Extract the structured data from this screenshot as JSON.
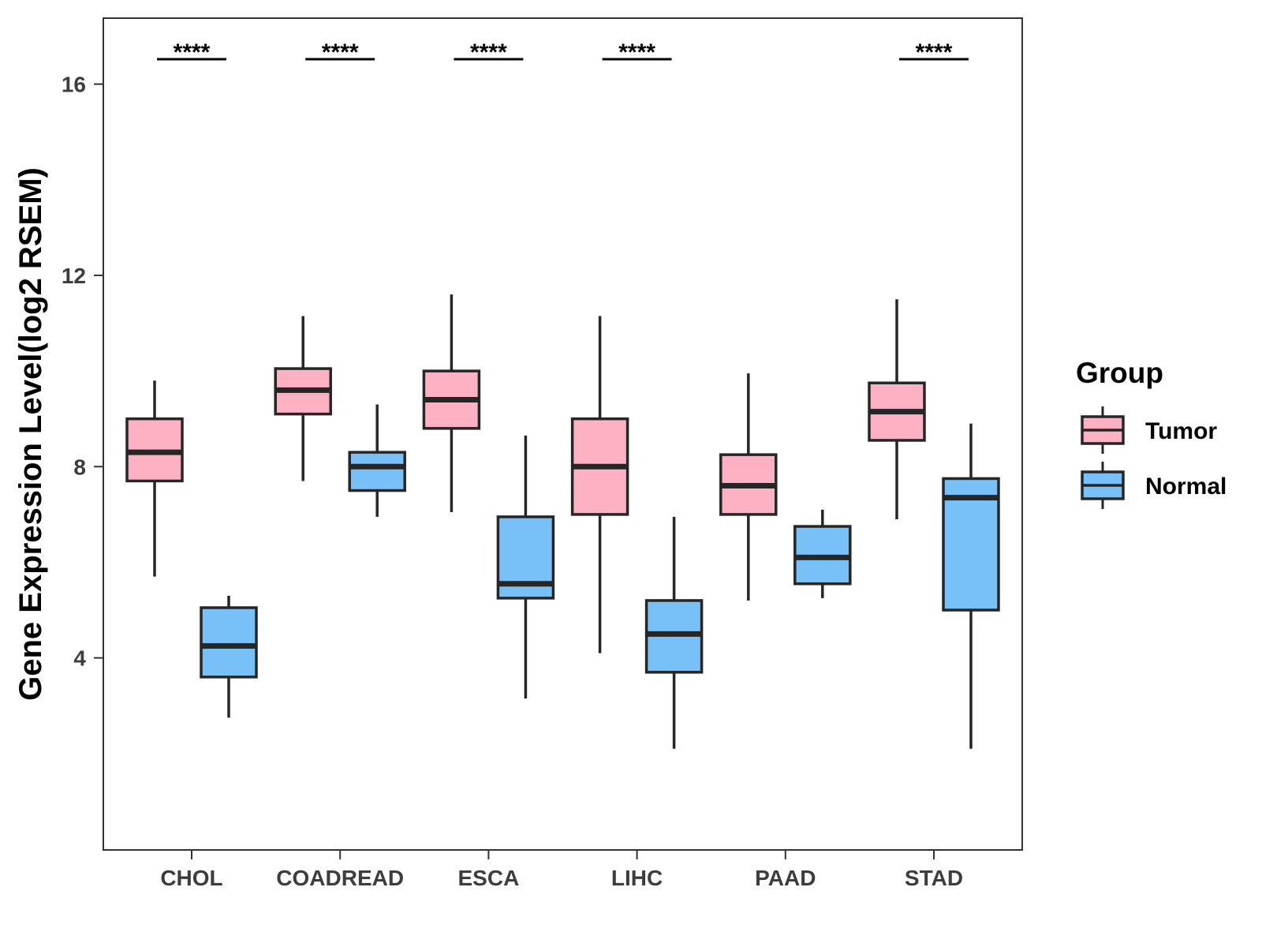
{
  "chart_data": {
    "type": "boxplot",
    "title": "",
    "xlabel": "",
    "ylabel": "Gene Expression Level(log2 RSEM)",
    "ylim": [
      0,
      17
    ],
    "yticks": [
      4,
      8,
      12,
      16
    ],
    "grid": false,
    "legend_position": "right",
    "legend_title": "Group",
    "categories": [
      "CHOL",
      "COADREAD",
      "ESCA",
      "LIHC",
      "PAAD",
      "STAD"
    ],
    "significance": [
      "****",
      "****",
      "****",
      "****",
      "",
      "****"
    ],
    "series": [
      {
        "name": "Tumor",
        "color": "#fdb1c3",
        "boxes": [
          {
            "lower_whisker": 5.7,
            "q1": 7.7,
            "median": 8.3,
            "q3": 9.0,
            "upper_whisker": 9.8
          },
          {
            "lower_whisker": 7.7,
            "q1": 9.1,
            "median": 9.6,
            "q3": 10.05,
            "upper_whisker": 11.15
          },
          {
            "lower_whisker": 7.05,
            "q1": 8.8,
            "median": 9.4,
            "q3": 10.0,
            "upper_whisker": 11.6
          },
          {
            "lower_whisker": 4.1,
            "q1": 7.0,
            "median": 8.0,
            "q3": 9.0,
            "upper_whisker": 11.15
          },
          {
            "lower_whisker": 5.2,
            "q1": 7.0,
            "median": 7.6,
            "q3": 8.25,
            "upper_whisker": 9.95
          },
          {
            "lower_whisker": 6.9,
            "q1": 8.55,
            "median": 9.15,
            "q3": 9.75,
            "upper_whisker": 11.5
          }
        ]
      },
      {
        "name": "Normal",
        "color": "#78c1f8",
        "boxes": [
          {
            "lower_whisker": 2.75,
            "q1": 3.6,
            "median": 4.25,
            "q3": 5.05,
            "upper_whisker": 5.3
          },
          {
            "lower_whisker": 6.95,
            "q1": 7.5,
            "median": 8.0,
            "q3": 8.3,
            "upper_whisker": 9.3
          },
          {
            "lower_whisker": 3.15,
            "q1": 5.25,
            "median": 5.55,
            "q3": 6.95,
            "upper_whisker": 8.65
          },
          {
            "lower_whisker": 2.1,
            "q1": 3.7,
            "median": 4.5,
            "q3": 5.2,
            "upper_whisker": 6.95
          },
          {
            "lower_whisker": 5.25,
            "q1": 5.55,
            "median": 6.1,
            "q3": 6.75,
            "upper_whisker": 7.1
          },
          {
            "lower_whisker": 2.1,
            "q1": 5.0,
            "median": 7.35,
            "q3": 7.75,
            "upper_whisker": 8.9
          }
        ]
      }
    ]
  }
}
